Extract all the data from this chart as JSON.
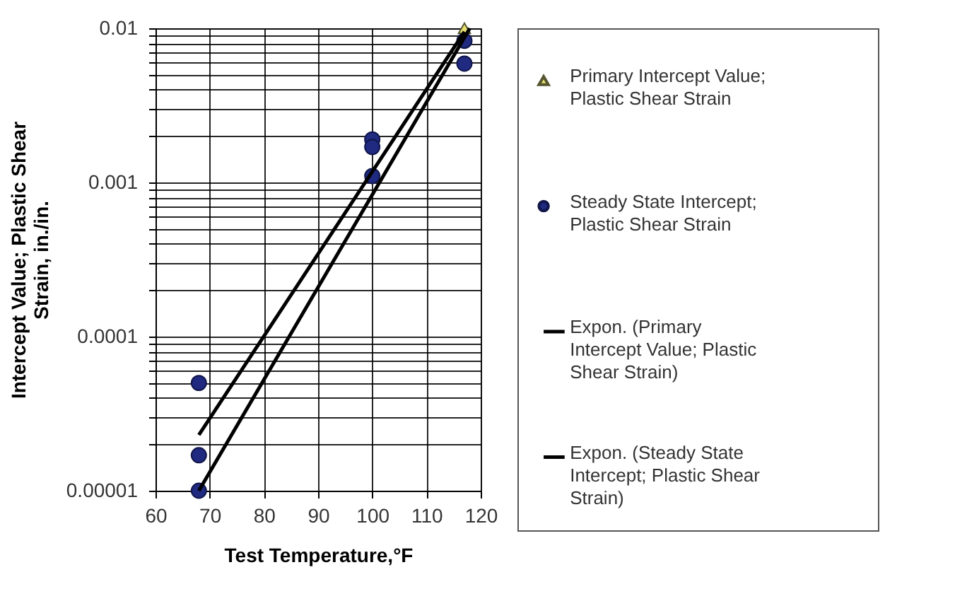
{
  "chart_data": {
    "type": "scatter",
    "xlabel": "Test Temperature,°F",
    "ylabel": "Intercept Value; Plastic Shear Strain, in./in.",
    "log": "y",
    "grid": true,
    "legend": "right",
    "xlim": [
      60,
      120
    ],
    "xticks": [
      60,
      70,
      80,
      90,
      100,
      110,
      120
    ],
    "ylim": [
      1e-05,
      0.01
    ],
    "yticks": [
      {
        "value": 1e-05,
        "label": "0.00001"
      },
      {
        "value": 2e-05,
        "label": null
      },
      {
        "value": 3e-05,
        "label": null
      },
      {
        "value": 4e-05,
        "label": null
      },
      {
        "value": 5e-05,
        "label": null
      },
      {
        "value": 6e-05,
        "label": null
      },
      {
        "value": 7e-05,
        "label": null
      },
      {
        "value": 8e-05,
        "label": null
      },
      {
        "value": 9e-05,
        "label": null
      },
      {
        "value": 0.0001,
        "label": "0.0001"
      },
      {
        "value": 0.0002,
        "label": null
      },
      {
        "value": 0.0003,
        "label": null
      },
      {
        "value": 0.0004,
        "label": null
      },
      {
        "value": 0.0005,
        "label": null
      },
      {
        "value": 0.0006,
        "label": null
      },
      {
        "value": 0.0007,
        "label": null
      },
      {
        "value": 0.0008,
        "label": null
      },
      {
        "value": 0.0009,
        "label": null
      },
      {
        "value": 0.001,
        "label": "0.001"
      },
      {
        "value": 0.002,
        "label": null
      },
      {
        "value": 0.003,
        "label": null
      },
      {
        "value": 0.004,
        "label": null
      },
      {
        "value": 0.005,
        "label": null
      },
      {
        "value": 0.006,
        "label": null
      },
      {
        "value": 0.007,
        "label": null
      },
      {
        "value": 0.008,
        "label": null
      },
      {
        "value": 0.009,
        "label": null
      },
      {
        "value": 0.01,
        "label": "0.01"
      }
    ],
    "series": [
      {
        "name": "Primary Intercept Value; Plastic Shear Strain",
        "marker": "triangle",
        "color": "#e8e070",
        "x": [
          117
        ],
        "values": [
          0.01
        ]
      },
      {
        "name": "Steady State Intercept; Plastic Shear Strain",
        "marker": "circle",
        "color": "#1f2a80",
        "x": [
          68,
          68,
          68,
          100,
          100,
          100,
          117,
          117
        ],
        "values": [
          5e-05,
          1.7e-05,
          1e-05,
          0.0019,
          0.0017,
          0.0011,
          0.0083,
          0.0059
        ]
      },
      {
        "name": "Expon. (Primary Intercept Value; Plastic Shear Strain)",
        "type": "line",
        "marker": "none",
        "color": "#000000",
        "x": [
          68,
          117
        ],
        "values": [
          2.3e-05,
          0.0095
        ]
      },
      {
        "name": "Expon. (Steady State Intercept; Plastic Shear Strain)",
        "type": "line",
        "marker": "none",
        "color": "#000000",
        "x": [
          68,
          118
        ],
        "values": [
          1e-05,
          0.01
        ]
      }
    ]
  }
}
